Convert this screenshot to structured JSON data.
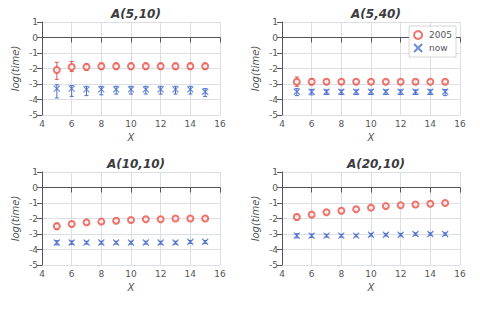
{
  "chart_data": [
    {
      "type": "scatter",
      "title": "A(5,10)",
      "xlabel": "X",
      "ylabel": "log(time)",
      "x": [
        5,
        6,
        7,
        8,
        9,
        10,
        11,
        12,
        13,
        14,
        15
      ],
      "series": [
        {
          "name": "2005",
          "color": "#e8524a",
          "marker": "circle",
          "values": [
            -2.1,
            -1.9,
            -1.9,
            -1.85,
            -1.85,
            -1.85,
            -1.85,
            -1.85,
            -1.85,
            -1.85,
            -1.85
          ],
          "yerr_lo": [
            0.6,
            0.3,
            0.2,
            0.2,
            0.2,
            0.2,
            0.2,
            0.2,
            0.2,
            0.2,
            0.2
          ],
          "yerr_hi": [
            0.5,
            0.35,
            0.2,
            0.2,
            0.2,
            0.2,
            0.2,
            0.2,
            0.2,
            0.2,
            0.2
          ]
        },
        {
          "name": "now",
          "color": "#4c6fcd",
          "marker": "x",
          "values": [
            -3.3,
            -3.3,
            -3.35,
            -3.35,
            -3.35,
            -3.35,
            -3.35,
            -3.35,
            -3.35,
            -3.35,
            -3.5
          ],
          "yerr_lo": [
            0.6,
            0.5,
            0.4,
            0.35,
            0.3,
            0.3,
            0.3,
            0.3,
            0.3,
            0.3,
            0.3
          ],
          "yerr_hi": [
            0.25,
            0.2,
            0.2,
            0.2,
            0.2,
            0.2,
            0.2,
            0.2,
            0.2,
            0.2,
            0.2
          ]
        }
      ],
      "xlim": [
        4,
        16
      ],
      "ylim": [
        -5,
        1
      ],
      "xticks": [
        4,
        6,
        8,
        10,
        12,
        14,
        16
      ],
      "yticks": [
        -5,
        -4,
        -3,
        -2,
        -1,
        0,
        1
      ],
      "grid": true
    },
    {
      "type": "scatter",
      "title": "A(5,40)",
      "xlabel": "X",
      "ylabel": "log(time)",
      "x": [
        5,
        6,
        7,
        8,
        9,
        10,
        11,
        12,
        13,
        14,
        15
      ],
      "series": [
        {
          "name": "2005",
          "color": "#e8524a",
          "marker": "circle",
          "values": [
            -2.85,
            -2.85,
            -2.85,
            -2.85,
            -2.85,
            -2.85,
            -2.85,
            -2.85,
            -2.85,
            -2.85,
            -2.85
          ],
          "yerr_lo": [
            0.3,
            0.2,
            0.15,
            0.12,
            0.12,
            0.1,
            0.1,
            0.1,
            0.1,
            0.1,
            0.1
          ],
          "yerr_hi": [
            0.3,
            0.2,
            0.15,
            0.12,
            0.12,
            0.1,
            0.1,
            0.1,
            0.1,
            0.1,
            0.1
          ]
        },
        {
          "name": "now",
          "color": "#4c6fcd",
          "marker": "x",
          "values": [
            -3.5,
            -3.5,
            -3.5,
            -3.5,
            -3.5,
            -3.5,
            -3.5,
            -3.5,
            -3.5,
            -3.5,
            -3.5
          ],
          "yerr_lo": [
            0.25,
            0.2,
            0.18,
            0.18,
            0.18,
            0.18,
            0.18,
            0.18,
            0.18,
            0.18,
            0.25
          ],
          "yerr_hi": [
            0.2,
            0.15,
            0.12,
            0.12,
            0.12,
            0.12,
            0.12,
            0.12,
            0.12,
            0.12,
            0.15
          ]
        }
      ],
      "xlim": [
        4,
        16
      ],
      "ylim": [
        -5,
        1
      ],
      "xticks": [
        4,
        6,
        8,
        10,
        12,
        14,
        16
      ],
      "yticks": [
        -5,
        -4,
        -3,
        -2,
        -1,
        0,
        1
      ],
      "grid": true,
      "legend": "upper right"
    },
    {
      "type": "scatter",
      "title": "A(10,10)",
      "xlabel": "X",
      "ylabel": "log(time)",
      "x": [
        5,
        6,
        7,
        8,
        9,
        10,
        11,
        12,
        13,
        14,
        15
      ],
      "series": [
        {
          "name": "2005",
          "color": "#e8524a",
          "marker": "circle",
          "values": [
            -2.5,
            -2.35,
            -2.25,
            -2.2,
            -2.15,
            -2.1,
            -2.05,
            -2.05,
            -2.0,
            -2.0,
            -2.0
          ],
          "yerr_lo": [
            0.2,
            0.15,
            0.12,
            0.1,
            0.1,
            0.1,
            0.1,
            0.1,
            0.08,
            0.08,
            0.08
          ],
          "yerr_hi": [
            0.2,
            0.15,
            0.12,
            0.1,
            0.1,
            0.1,
            0.1,
            0.1,
            0.08,
            0.08,
            0.08
          ]
        },
        {
          "name": "now",
          "color": "#4c6fcd",
          "marker": "x",
          "values": [
            -3.55,
            -3.55,
            -3.55,
            -3.55,
            -3.55,
            -3.55,
            -3.55,
            -3.55,
            -3.55,
            -3.5,
            -3.5
          ],
          "yerr_lo": [
            0.15,
            0.12,
            0.1,
            0.1,
            0.1,
            0.1,
            0.1,
            0.1,
            0.1,
            0.1,
            0.1
          ],
          "yerr_hi": [
            0.12,
            0.1,
            0.08,
            0.08,
            0.08,
            0.08,
            0.08,
            0.08,
            0.08,
            0.08,
            0.08
          ]
        }
      ],
      "xlim": [
        4,
        16
      ],
      "ylim": [
        -5,
        1
      ],
      "xticks": [
        4,
        6,
        8,
        10,
        12,
        14,
        16
      ],
      "yticks": [
        -5,
        -4,
        -3,
        -2,
        -1,
        0,
        1
      ],
      "grid": true
    },
    {
      "type": "scatter",
      "title": "A(20,10)",
      "xlabel": "X",
      "ylabel": "log(time)",
      "x": [
        5,
        6,
        7,
        8,
        9,
        10,
        11,
        12,
        13,
        14,
        15
      ],
      "series": [
        {
          "name": "2005",
          "color": "#e8524a",
          "marker": "circle",
          "values": [
            -1.9,
            -1.75,
            -1.6,
            -1.5,
            -1.4,
            -1.3,
            -1.2,
            -1.15,
            -1.1,
            -1.05,
            -1.0
          ],
          "yerr_lo": [
            0.18,
            0.15,
            0.12,
            0.1,
            0.1,
            0.1,
            0.08,
            0.08,
            0.08,
            0.07,
            0.07
          ],
          "yerr_hi": [
            0.18,
            0.15,
            0.12,
            0.1,
            0.1,
            0.1,
            0.08,
            0.08,
            0.08,
            0.07,
            0.07
          ]
        },
        {
          "name": "now",
          "color": "#4c6fcd",
          "marker": "x",
          "values": [
            -3.1,
            -3.1,
            -3.1,
            -3.1,
            -3.1,
            -3.05,
            -3.05,
            -3.05,
            -3.0,
            -3.0,
            -3.0
          ],
          "yerr_lo": [
            0.15,
            0.12,
            0.1,
            0.1,
            0.08,
            0.08,
            0.08,
            0.08,
            0.08,
            0.08,
            0.08
          ],
          "yerr_hi": [
            0.12,
            0.1,
            0.08,
            0.08,
            0.08,
            0.08,
            0.08,
            0.08,
            0.07,
            0.07,
            0.07
          ]
        }
      ],
      "xlim": [
        4,
        16
      ],
      "ylim": [
        -5,
        1
      ],
      "xticks": [
        4,
        6,
        8,
        10,
        12,
        14,
        16
      ],
      "yticks": [
        -5,
        -4,
        -3,
        -2,
        -1,
        0,
        1
      ],
      "grid": true
    }
  ]
}
